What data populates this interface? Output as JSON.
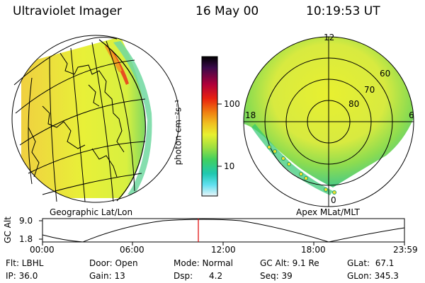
{
  "header": {
    "instrument": "Ultraviolet Imager",
    "date": "16 May 00",
    "time": "10:19:53 UT"
  },
  "colorbar": {
    "unit_label": "photon cm⁻²s⁻¹",
    "ticks": [
      "100",
      "10"
    ],
    "scale": "log",
    "colors": [
      "#000000",
      "#3a0a4a",
      "#b0003a",
      "#e82010",
      "#f08010",
      "#f0c020",
      "#e8f030",
      "#a0e040",
      "#40d060",
      "#20c8b0",
      "#60e0f0",
      "#d8f0f8"
    ]
  },
  "maps": {
    "left_label": "Geographic Lat/Lon",
    "right_label": "Apex MLat/MLT",
    "mlt_labels": [
      "12",
      "18",
      "6",
      "0"
    ],
    "mlat_labels": [
      "60",
      "70",
      "80"
    ]
  },
  "altitude_plot": {
    "ylabel": "GC Alt",
    "yticks": [
      "9.0",
      "1.8"
    ],
    "xticks": [
      "00:00",
      "06:00",
      "12:00",
      "18:00",
      "23:59"
    ],
    "marker_color": "#e00000"
  },
  "info": {
    "filter": "Flt: LBHL",
    "door": "Door: Open",
    "mode": "Mode: Normal",
    "gc_alt": "GC Alt: 9.1 Re",
    "glat": "GLat:  67.1",
    "ip": "IP: 36.0",
    "gain": "Gain: 13",
    "dsp": "Dsp:      4.2",
    "seq": "Seq: 39",
    "glon": "GLon: 345.3"
  }
}
